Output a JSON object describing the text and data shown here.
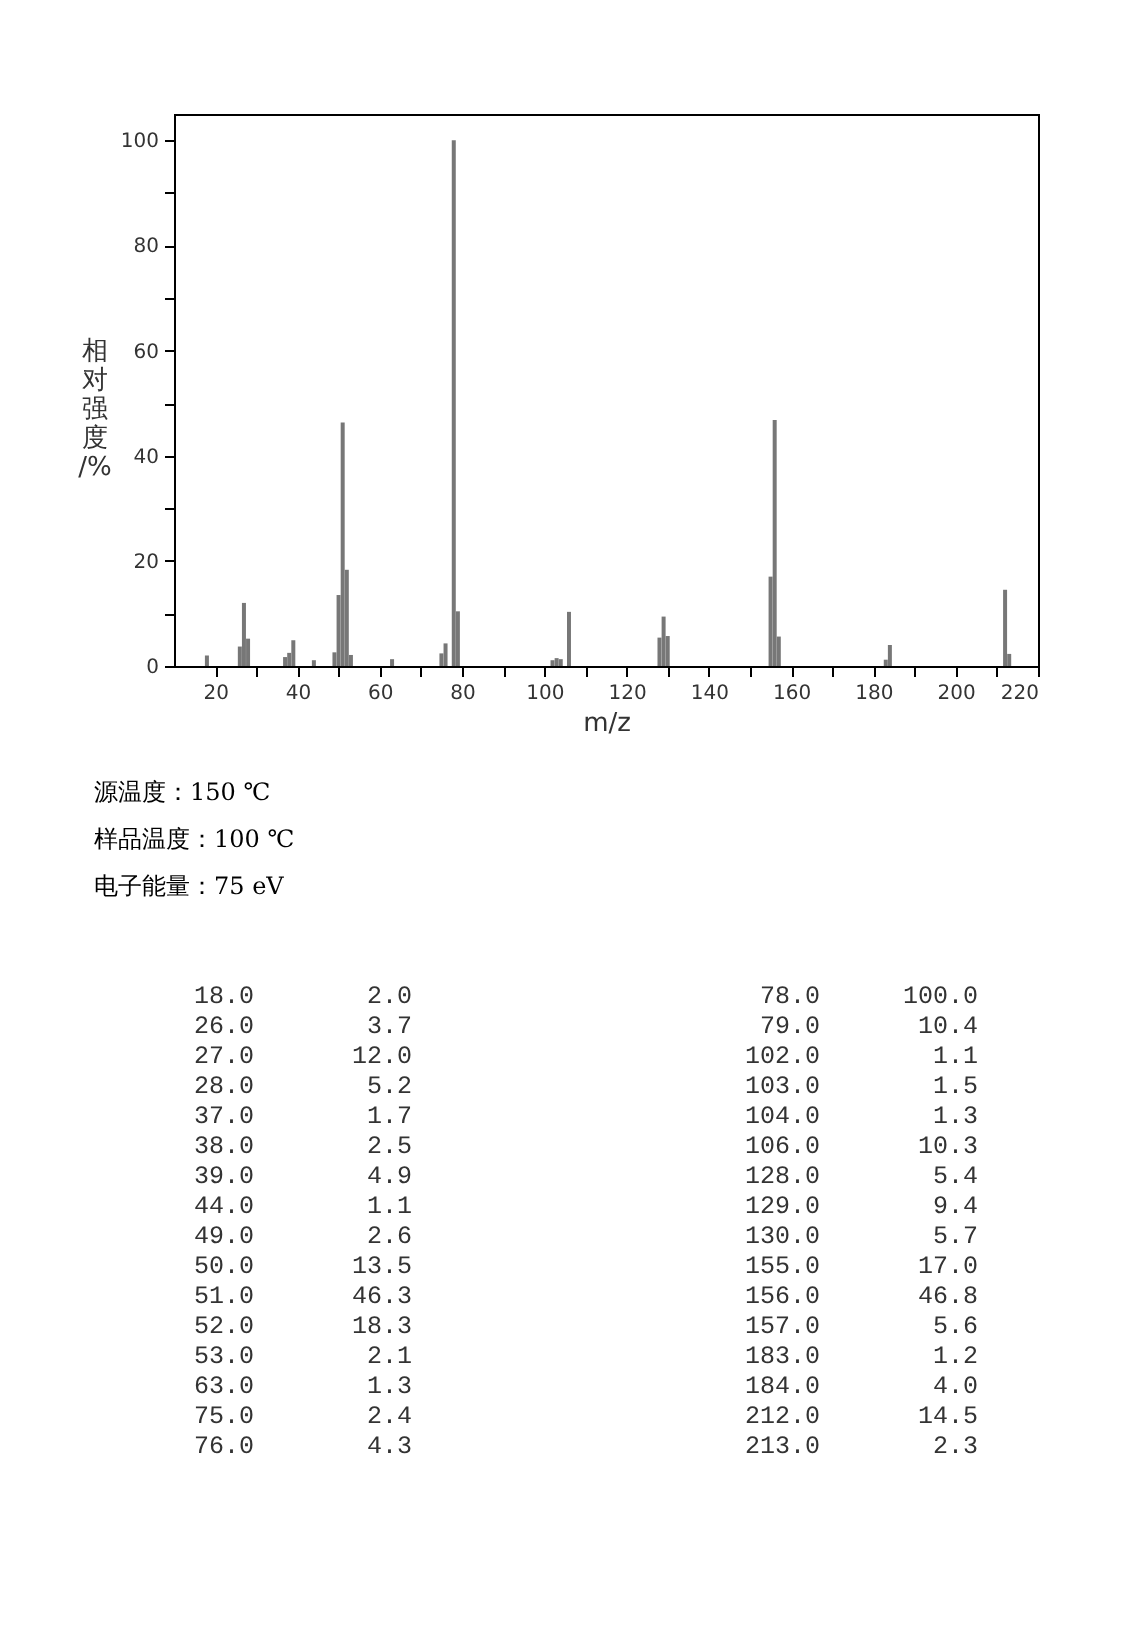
{
  "chart_data": [
    {
      "type": "bar",
      "xlabel": "m/z",
      "ylabel": "相对强度/%",
      "x": [
        18,
        26,
        27,
        28,
        37,
        38,
        39,
        44,
        49,
        50,
        51,
        52,
        53,
        63,
        75,
        76,
        78,
        79,
        102,
        103,
        104,
        106,
        128,
        129,
        130,
        155,
        156,
        157,
        183,
        184,
        212,
        213
      ],
      "values": [
        2.0,
        3.7,
        12.0,
        5.2,
        1.7,
        2.5,
        4.9,
        1.1,
        2.6,
        13.5,
        46.3,
        18.3,
        2.1,
        1.3,
        2.4,
        4.3,
        100.0,
        10.4,
        1.1,
        1.5,
        1.3,
        10.3,
        5.4,
        9.4,
        5.7,
        17.0,
        46.8,
        5.6,
        1.2,
        4.0,
        14.5,
        2.3
      ],
      "color": "#777777",
      "xlim": [
        10,
        220
      ],
      "ylim": [
        0,
        105
      ],
      "xticks": [
        20,
        {
          "value": 30,
          "label": null
        },
        40,
        {
          "value": 50,
          "label": null
        },
        60,
        {
          "value": 70,
          "label": null
        },
        80,
        {
          "value": 90,
          "label": null
        },
        100,
        {
          "value": 110,
          "label": null
        },
        120,
        {
          "value": 130,
          "label": null
        },
        140,
        {
          "value": 150,
          "label": null
        },
        160,
        {
          "value": 170,
          "label": null
        },
        180,
        {
          "value": 190,
          "label": null
        },
        200,
        {
          "value": 210,
          "label": null
        },
        220
      ],
      "yticks": [
        0,
        {
          "value": 10,
          "label": null
        },
        20,
        {
          "value": 30,
          "label": null
        },
        40,
        {
          "value": 50,
          "label": null
        },
        60,
        {
          "value": 70,
          "label": null
        },
        80,
        {
          "value": 90,
          "label": null
        },
        100
      ],
      "annotations": [
        "源温度：150 ℃",
        "样品温度：100 ℃",
        "电子能量：75 eV"
      ]
    },
    {
      "type": "other",
      "annotations": [
        "18.0",
        "2.0",
        "78.0",
        "100.0",
        "26.0",
        "3.7",
        "79.0",
        "10.4",
        "27.0",
        "12.0",
        "102.0",
        "1.1",
        "28.0",
        "5.2",
        "103.0",
        "1.5",
        "37.0",
        "1.7",
        "104.0",
        "1.3",
        "38.0",
        "2.5",
        "106.0",
        "10.3",
        "39.0",
        "4.9",
        "128.0",
        "5.4",
        "44.0",
        "1.1",
        "129.0",
        "9.4",
        "49.0",
        "2.6",
        "130.0",
        "5.7",
        "50.0",
        "13.5",
        "155.0",
        "17.0",
        "51.0",
        "46.3",
        "156.0",
        "46.8",
        "52.0",
        "18.3",
        "157.0",
        "5.6",
        "53.0",
        "2.1",
        "183.0",
        "1.2",
        "63.0",
        "1.3",
        "184.0",
        "4.0",
        "75.0",
        "2.4",
        "212.0",
        "14.5",
        "76.0",
        "4.3",
        "213.0",
        "2.3"
      ]
    }
  ]
}
